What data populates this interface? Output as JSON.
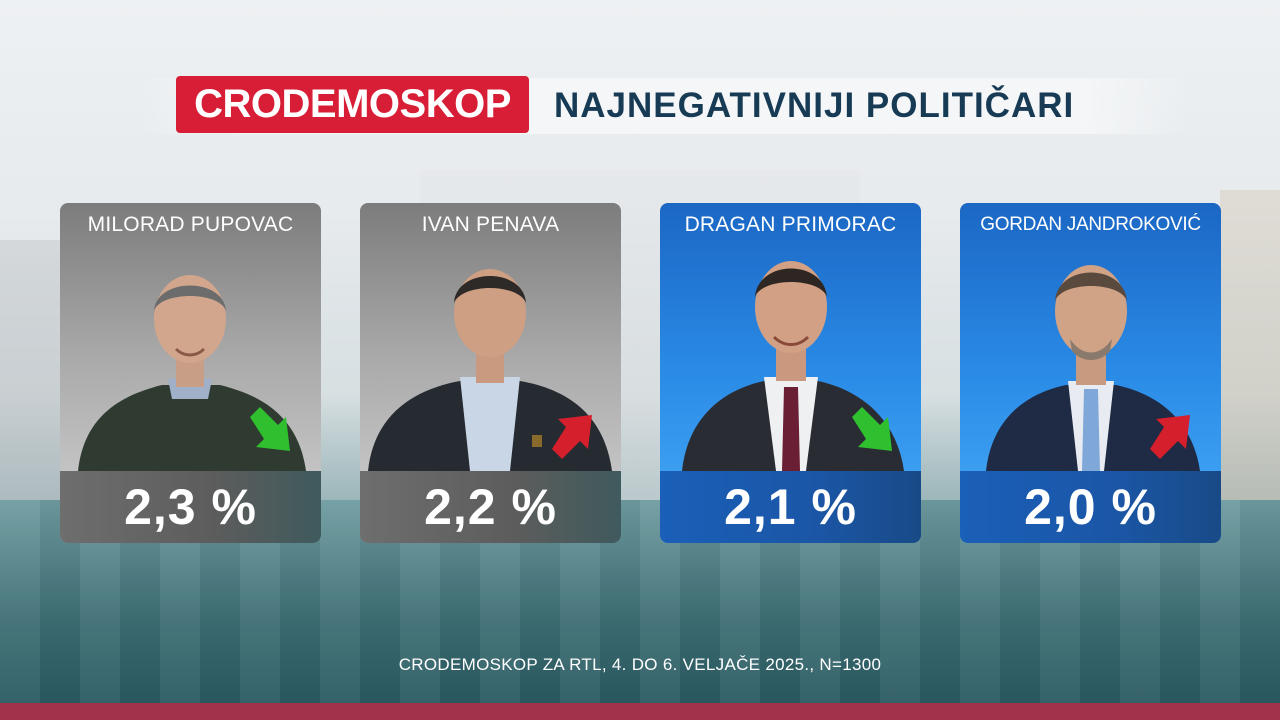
{
  "header": {
    "brand": "CRODEMOSKOP",
    "title": "NAJNEGATIVNIJI POLITIČARI"
  },
  "cards": [
    {
      "name": "MILORAD PUPOVAC",
      "value": "2,3 %",
      "trend": "down",
      "theme": "gray"
    },
    {
      "name": "IVAN PENAVA",
      "value": "2,2 %",
      "trend": "up",
      "theme": "gray"
    },
    {
      "name": "DRAGAN PRIMORAC",
      "value": "2,1 %",
      "trend": "down",
      "theme": "blue"
    },
    {
      "name": "GORDAN JANDROKOVIĆ",
      "value": "2,0 %",
      "trend": "up",
      "theme": "blue"
    }
  ],
  "footer": {
    "source": "CRODEMOSKOP ZA RTL, 4. DO 6. VELJAČE 2025., N=1300"
  },
  "colors": {
    "brand_red": "#d81e36",
    "title_navy": "#173a55",
    "trend_down": "#2fbf2f",
    "trend_up": "#d61f2c",
    "bottom_bar": "#a2324b"
  }
}
